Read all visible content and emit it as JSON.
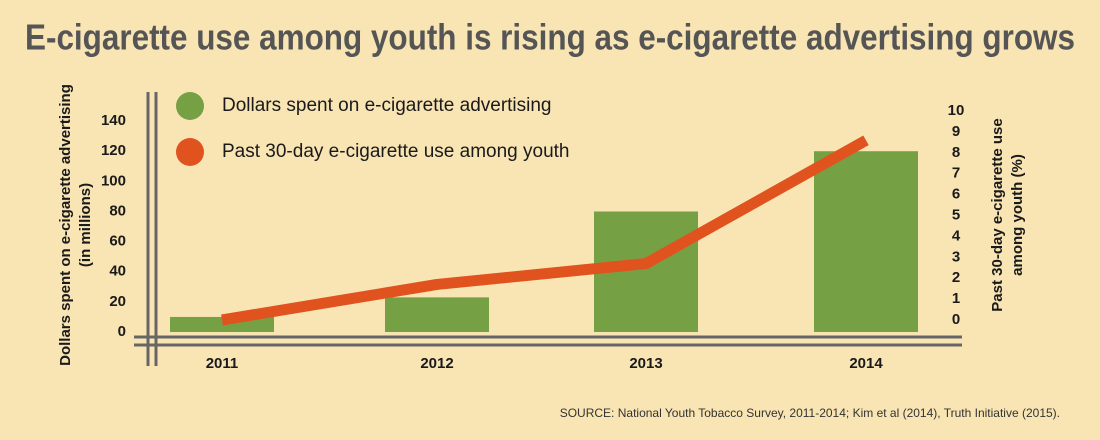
{
  "chart_data": {
    "type": "bar_line",
    "title": "E-cigarette use among youth is rising as e-cigarette advertising grows",
    "categories": [
      "2011",
      "2012",
      "2013",
      "2014"
    ],
    "series": [
      {
        "name": "Dollars spent on e-cigarette advertising",
        "color": "#76a044",
        "type": "bar",
        "axis": "y",
        "values": [
          10,
          23,
          80,
          120
        ]
      },
      {
        "name": "Past 30-day e-cigarette use among youth",
        "color": "#e0531f",
        "type": "line",
        "axis": "y2",
        "values": [
          0,
          1.7,
          2.7,
          8.6
        ]
      }
    ],
    "y_label": [
      "Dollars spent on e-cigarette advertising",
      "(in millions)"
    ],
    "y2_label": [
      "Past 30-day e-cigarette use",
      "among youth (%)"
    ],
    "ylim": [
      -5.3,
      154
    ],
    "yticks": [
      0,
      20,
      40,
      60,
      80,
      100,
      120,
      140
    ],
    "y2lim": [
      -0.96,
      10.53
    ],
    "y2ticks": [
      0,
      1,
      2,
      3,
      4,
      5,
      6,
      7,
      8,
      9,
      10
    ],
    "source": "SOURCE: National Youth Tobacco Survey, 2011-2014; Kim et al (2014), Truth Initiative (2015)."
  }
}
